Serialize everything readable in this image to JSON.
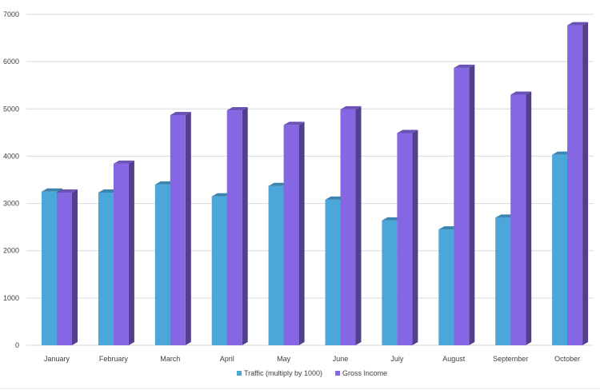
{
  "chart_data": {
    "type": "bar",
    "categories": [
      "January",
      "February",
      "March",
      "April",
      "May",
      "June",
      "July",
      "August",
      "September",
      "October"
    ],
    "series": [
      {
        "name": "Traffic (multiply by 1000)",
        "color": "#4BA6DA",
        "values": [
          3250,
          3230,
          3400,
          3150,
          3370,
          3080,
          2640,
          2450,
          2700,
          4030
        ]
      },
      {
        "name": "Gross Income",
        "color": "#8667E3",
        "values": [
          3230,
          3840,
          4870,
          4970,
          4660,
          4990,
          4490,
          5870,
          5300,
          6770
        ]
      }
    ],
    "yticks": [
      "0",
      "1000",
      "2000",
      "3000",
      "4000",
      "5000",
      "6000",
      "7000"
    ],
    "ylim": [
      0,
      7000
    ],
    "grid": true,
    "legend_position": "bottom",
    "style": "3d-columns"
  }
}
